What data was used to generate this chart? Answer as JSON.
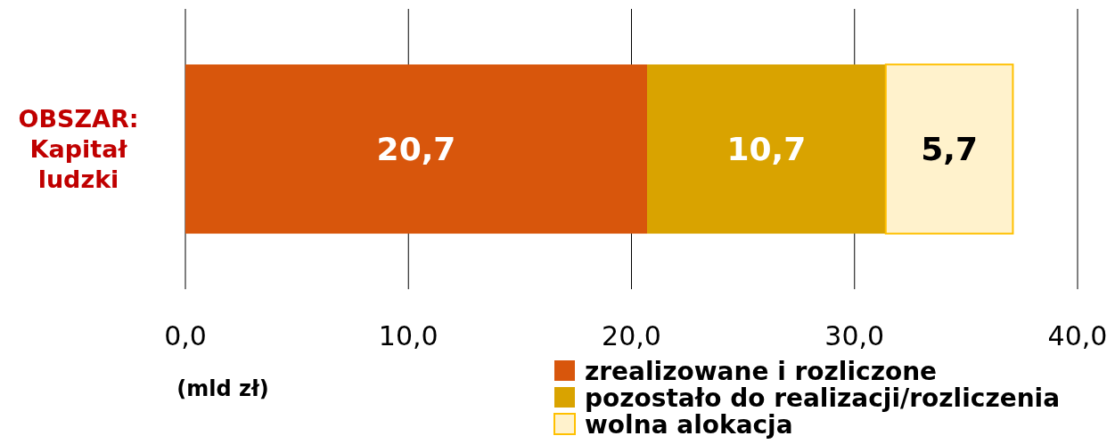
{
  "chart_data": {
    "type": "bar",
    "orientation": "horizontal",
    "stacked": true,
    "categories": [
      "OBSZAR: Kapitał ludzki"
    ],
    "series": [
      {
        "name": "zrealizowane i rozliczone",
        "color": "#d8560c",
        "values": [
          20.7
        ],
        "value_labels": [
          "20,7"
        ]
      },
      {
        "name": "pozostało do realizacji/rozliczenia",
        "color": "#d9a300",
        "values": [
          10.7
        ],
        "value_labels": [
          "10,7"
        ]
      },
      {
        "name": "wolna alokacja",
        "color": "#fff2cc",
        "values": [
          5.7
        ],
        "value_labels": [
          "5,7"
        ]
      }
    ],
    "xlim": [
      0,
      40
    ],
    "xticks": [
      {
        "value": 0,
        "label": "0,0"
      },
      {
        "value": 10,
        "label": "10,0"
      },
      {
        "value": 20,
        "label": "20,0"
      },
      {
        "value": 30,
        "label": "30,0"
      },
      {
        "value": 40,
        "label": "40,0"
      }
    ],
    "xlabel": "(mld zł)",
    "grid": "x",
    "legend": "bottom right"
  }
}
